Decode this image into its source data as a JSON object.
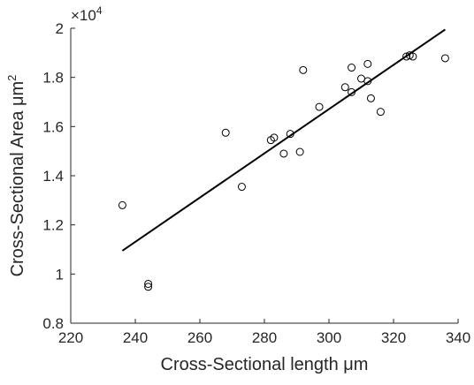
{
  "chart_data": {
    "type": "scatter",
    "xlabel": "Cross-Sectional length μm",
    "ylabel": "Cross-Sectional Area μm",
    "ylabel_sup": "2",
    "y_multiplier_base": "×10",
    "y_multiplier_exp": "4",
    "xlim": [
      220,
      340
    ],
    "ylim": [
      0.8,
      2.0
    ],
    "x_ticks": [
      "220",
      "240",
      "260",
      "280",
      "300",
      "320",
      "340"
    ],
    "y_ticks": [
      "0.8",
      "1",
      "1.2",
      "1.4",
      "1.6",
      "1.8",
      "2"
    ],
    "grid": false,
    "points": [
      {
        "x": 236.0,
        "y": 1.28
      },
      {
        "x": 244.0,
        "y": 0.96
      },
      {
        "x": 244.0,
        "y": 0.948
      },
      {
        "x": 268.0,
        "y": 1.575
      },
      {
        "x": 273.0,
        "y": 1.355
      },
      {
        "x": 282.0,
        "y": 1.545
      },
      {
        "x": 283.0,
        "y": 1.555
      },
      {
        "x": 286.0,
        "y": 1.49
      },
      {
        "x": 288.0,
        "y": 1.57
      },
      {
        "x": 291.0,
        "y": 1.497
      },
      {
        "x": 292.0,
        "y": 1.83
      },
      {
        "x": 297.0,
        "y": 1.68
      },
      {
        "x": 305.0,
        "y": 1.76
      },
      {
        "x": 307.0,
        "y": 1.84
      },
      {
        "x": 307.0,
        "y": 1.74
      },
      {
        "x": 310.0,
        "y": 1.795
      },
      {
        "x": 312.0,
        "y": 1.855
      },
      {
        "x": 312.0,
        "y": 1.785
      },
      {
        "x": 313.0,
        "y": 1.715
      },
      {
        "x": 316.0,
        "y": 1.66
      },
      {
        "x": 324.0,
        "y": 1.885
      },
      {
        "x": 325.0,
        "y": 1.89
      },
      {
        "x": 326.0,
        "y": 1.885
      },
      {
        "x": 336.0,
        "y": 1.878
      }
    ],
    "fit_line": {
      "x": [
        236.0,
        336.0
      ],
      "y": [
        1.095,
        1.995
      ]
    }
  }
}
